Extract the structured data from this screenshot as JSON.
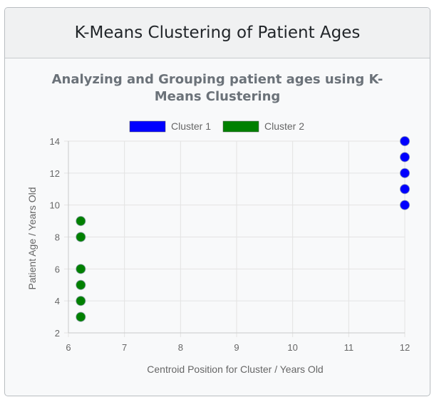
{
  "card": {
    "title": "K-Means Clustering of Patient Ages"
  },
  "chart_data": {
    "type": "scatter",
    "title": "Analyzing and Grouping patient ages using K-Means Clustering",
    "xlabel": "Centroid Position for Cluster / Years Old",
    "ylabel": "Patient Age / Years Old",
    "xlim": [
      6,
      12
    ],
    "ylim": [
      2,
      14
    ],
    "xticks": [
      6,
      7,
      8,
      9,
      10,
      11,
      12
    ],
    "yticks": [
      2,
      4,
      6,
      8,
      10,
      12,
      14
    ],
    "grid": true,
    "legend_position": "top",
    "series": [
      {
        "name": "Cluster 1",
        "color": "#0000ff",
        "x": [
          12,
          12,
          12,
          12,
          12
        ],
        "y": [
          14,
          13,
          12,
          11,
          10
        ]
      },
      {
        "name": "Cluster 2",
        "color": "#008000",
        "x": [
          6.22,
          6.22,
          6.22,
          6.22,
          6.22,
          6.22
        ],
        "y": [
          9,
          8,
          6,
          5,
          4,
          3
        ]
      }
    ]
  }
}
